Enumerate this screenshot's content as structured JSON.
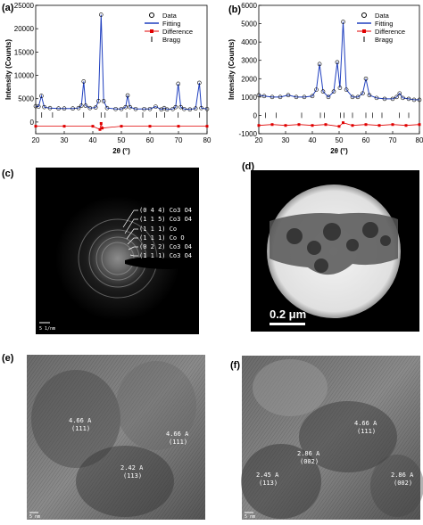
{
  "chart_data": [
    {
      "type": "line",
      "panel_label": "(a)",
      "x_label": "2θ (°)",
      "y_label": "Intensity (Counts)",
      "xlim": [
        20,
        80
      ],
      "xticks": [
        20,
        30,
        40,
        50,
        60,
        70,
        80
      ],
      "ylim": [
        -2500,
        25000
      ],
      "yticks": [
        0,
        5000,
        10000,
        15000,
        20000,
        25000
      ],
      "legend": "upper right",
      "series": [
        {
          "name": "Data",
          "mode": "markers",
          "color": "#000000",
          "x": [
            20,
            21,
            22,
            23,
            25,
            28,
            30,
            33,
            35,
            36,
            36.8,
            37.5,
            39,
            41,
            42,
            42.9,
            43.8,
            45,
            48,
            50,
            51.5,
            52.2,
            53,
            55,
            58,
            60,
            62,
            64,
            65,
            66,
            68,
            69,
            69.9,
            70.8,
            72,
            74,
            76,
            77.3,
            78,
            80
          ],
          "values": [
            3400,
            3300,
            5600,
            3200,
            3000,
            2900,
            2900,
            2900,
            3000,
            3500,
            8700,
            3500,
            3000,
            3100,
            4500,
            23000,
            4500,
            3000,
            2800,
            2800,
            3200,
            5700,
            3200,
            2800,
            2800,
            2800,
            3300,
            2700,
            3000,
            2700,
            2800,
            3200,
            8200,
            3200,
            2800,
            2700,
            2900,
            8400,
            3000,
            2800
          ]
        },
        {
          "name": "Fitting",
          "mode": "line",
          "color": "#1f3fbf",
          "x": [
            20,
            21,
            22,
            23,
            25,
            28,
            30,
            33,
            35,
            36,
            36.8,
            37.5,
            39,
            41,
            42,
            42.9,
            43.8,
            45,
            48,
            50,
            51.5,
            52.2,
            53,
            55,
            58,
            60,
            62,
            64,
            65,
            66,
            68,
            69,
            69.9,
            70.8,
            72,
            74,
            76,
            77.3,
            78,
            80
          ],
          "values": [
            3400,
            3300,
            5600,
            3200,
            3000,
            2900,
            2900,
            2900,
            3000,
            3500,
            8700,
            3500,
            3000,
            3100,
            4500,
            23000,
            4500,
            3000,
            2800,
            2800,
            3200,
            5700,
            3200,
            2800,
            2800,
            2800,
            3300,
            2700,
            3000,
            2700,
            2800,
            3200,
            8200,
            3200,
            2800,
            2700,
            2900,
            8400,
            3000,
            2800
          ]
        },
        {
          "name": "Difference",
          "mode": "line-square",
          "color": "#e00000",
          "x": [
            20,
            30,
            40,
            42.5,
            42.9,
            43.3,
            50,
            60,
            70,
            80
          ],
          "values": [
            -900,
            -900,
            -900,
            -1600,
            -300,
            -1300,
            -900,
            -900,
            -900,
            -900
          ]
        },
        {
          "name": "Bragg",
          "mode": "tick",
          "color": "#000000",
          "x": [
            22.1,
            25.9,
            36.8,
            42.9,
            44.3,
            51.9,
            57.5,
            62.3,
            65.2,
            69.9,
            77.4
          ],
          "values": [
            1500,
            1500,
            1500,
            1500,
            1500,
            1500,
            1500,
            1500,
            1500,
            1500,
            1500
          ]
        }
      ]
    },
    {
      "type": "line",
      "panel_label": "(b)",
      "x_label": "2θ (°)",
      "y_label": "Intensity (Counts)",
      "xlim": [
        20,
        80
      ],
      "xticks": [
        20,
        30,
        40,
        50,
        60,
        70,
        80
      ],
      "ylim": [
        -1000,
        6000
      ],
      "yticks": [
        -1000,
        0,
        1000,
        2000,
        3000,
        4000,
        5000,
        6000
      ],
      "legend": "upper right",
      "series": [
        {
          "name": "Data",
          "mode": "markers",
          "color": "#000000",
          "x": [
            20,
            22,
            25,
            28,
            31,
            34,
            37,
            40,
            41.5,
            42.7,
            44,
            46,
            48,
            49.3,
            50.3,
            51.5,
            52.7,
            55,
            57,
            58.8,
            60,
            61.3,
            64,
            67,
            70,
            71.5,
            72.6,
            73.8,
            76,
            78,
            80
          ],
          "values": [
            1100,
            1050,
            1000,
            1000,
            1100,
            1000,
            1000,
            1050,
            1400,
            2800,
            1300,
            1000,
            1300,
            2900,
            1500,
            5100,
            1400,
            1000,
            1000,
            1200,
            2000,
            1100,
            950,
            900,
            900,
            1000,
            1200,
            950,
            900,
            850,
            850
          ]
        },
        {
          "name": "Fitting",
          "mode": "line",
          "color": "#1f3fbf",
          "x": [
            20,
            22,
            25,
            28,
            31,
            34,
            37,
            40,
            41.5,
            42.7,
            44,
            46,
            48,
            49.3,
            50.3,
            51.5,
            52.7,
            55,
            57,
            58.8,
            60,
            61.3,
            64,
            67,
            70,
            71.5,
            72.6,
            73.8,
            76,
            78,
            80
          ],
          "values": [
            1100,
            1050,
            1000,
            1000,
            1100,
            1000,
            1000,
            1050,
            1400,
            2800,
            1300,
            1000,
            1300,
            2900,
            1500,
            5100,
            1400,
            1000,
            1000,
            1200,
            2000,
            1100,
            950,
            900,
            900,
            1000,
            1200,
            950,
            900,
            850,
            850
          ]
        },
        {
          "name": "Difference",
          "mode": "line-square",
          "color": "#e00000",
          "x": [
            20,
            25,
            30,
            35,
            40,
            45,
            50,
            51.5,
            55,
            60,
            65,
            70,
            75,
            80
          ],
          "values": [
            -550,
            -500,
            -550,
            -500,
            -550,
            -500,
            -600,
            -400,
            -550,
            -500,
            -550,
            -500,
            -550,
            -500
          ]
        },
        {
          "name": "Bragg",
          "mode": "tick",
          "color": "#000000",
          "x": [
            22.5,
            26.5,
            36,
            43,
            44.5,
            50.5,
            51.8,
            55,
            60,
            62.5,
            66,
            72.5,
            76
          ],
          "values": [
            0,
            0,
            0,
            0,
            0,
            0,
            0,
            0,
            0,
            0,
            0,
            0,
            0
          ]
        }
      ]
    }
  ],
  "panels": {
    "c": {
      "label": "(c)",
      "annotations": [
        "(0 4 4) Co3 O4",
        "(1 1 5) Co3 O4",
        "(1 1 1) Co",
        "(1 1 1) Co O",
        "(0 2 2) Co3 O4",
        "(1 1 1) Co3 O4"
      ],
      "scale": "5 1/nm"
    },
    "d": {
      "label": "(d)",
      "scale": "0.2 μm"
    },
    "e": {
      "label": "(e)",
      "annotations": [
        "4.66 A",
        "(111)",
        "4.66 A",
        "(111)",
        "2.42 A",
        "(113)"
      ],
      "scale": "5 nm"
    },
    "f": {
      "label": "(f)",
      "annotations": [
        "4.66 A",
        "(111)",
        "2.86 A",
        "(002)",
        "2.45 A",
        "(113)",
        "2.86 A",
        "(002)"
      ],
      "scale": "5 nm"
    }
  }
}
